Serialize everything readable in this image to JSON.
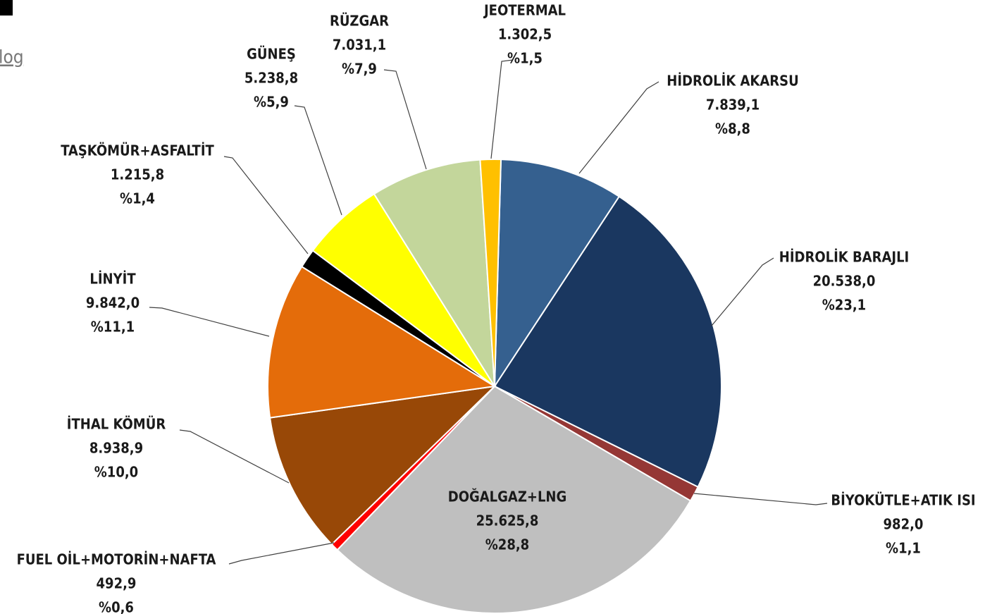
{
  "link_text": "log",
  "chart_data": {
    "type": "pie",
    "categories": [
      "HİDROLİK AKARSU",
      "HİDROLİK BARAJLI",
      "BİYOKÜTLE+ATIK ISI",
      "DOĞALGAZ+LNG",
      "FUEL OİL+MOTORİN+NAFTA",
      "İTHAL KÖMÜR",
      "LİNYİT",
      "TAŞKÖMÜR+ASFALTİT",
      "GÜNEŞ",
      "RÜZGAR",
      "JEOTERMAL"
    ],
    "values": [
      7839.1,
      20538.0,
      982.0,
      25625.8,
      492.9,
      8938.9,
      9842.0,
      1215.8,
      5238.8,
      7031.1,
      1302.5
    ],
    "value_labels": [
      "7.839,1",
      "20.538,0",
      "982,0",
      "25.625,8",
      "492,9",
      "8.938,9",
      "9.842,0",
      "1.215,8",
      "5.238,8",
      "7.031,1",
      "1.302,5"
    ],
    "percent_labels": [
      "%8,8",
      "%23,1",
      "%1,1",
      "%28,8",
      "%0,6",
      "%10,0",
      "%11,1",
      "%1,4",
      "%5,9",
      "%7,9",
      "%1,5"
    ],
    "colors": [
      "#35608f",
      "#1a3760",
      "#953735",
      "#bfbfbf",
      "#ff0000",
      "#984807",
      "#e46c0a",
      "#000000",
      "#ffff00",
      "#c3d69b",
      "#ffc000"
    ]
  }
}
